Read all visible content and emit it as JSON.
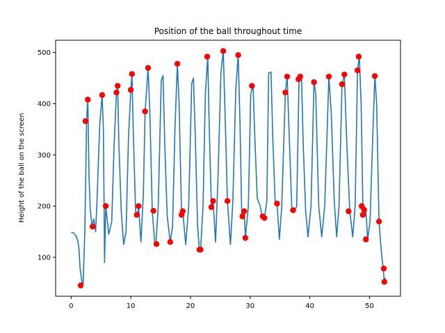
{
  "chart_data": {
    "type": "line",
    "title": "Position of the ball throughout time",
    "xlabel": "",
    "ylabel": "Height of the ball on the screen",
    "xlim": [
      -2.6,
      55.2
    ],
    "ylim": [
      24,
      524
    ],
    "xticks": [
      0,
      10,
      20,
      30,
      40,
      50
    ],
    "yticks": [
      100,
      200,
      300,
      400,
      500
    ],
    "grid": false,
    "line_color": "#1f77b4",
    "marker_color": "#ff0000",
    "series": [
      {
        "values": [
          [
            0,
            148
          ],
          [
            0.4,
            148
          ],
          [
            0.8,
            142
          ],
          [
            1.1,
            133
          ],
          [
            1.3,
            118
          ],
          [
            1.5,
            78
          ],
          [
            1.8,
            52
          ],
          [
            2.0,
            45
          ],
          [
            2.3,
            150
          ],
          [
            2.6,
            370
          ],
          [
            2.8,
            408
          ],
          [
            3.0,
            255
          ],
          [
            3.2,
            195
          ],
          [
            3.5,
            160
          ],
          [
            3.8,
            175
          ],
          [
            4.1,
            150
          ],
          [
            4.3,
            200
          ],
          [
            4.8,
            360
          ],
          [
            5.2,
            417
          ],
          [
            5.4,
            350
          ],
          [
            5.6,
            90
          ],
          [
            5.8,
            200
          ],
          [
            6.3,
            145
          ],
          [
            6.8,
            170
          ],
          [
            7.2,
            320
          ],
          [
            7.6,
            422
          ],
          [
            7.8,
            435
          ],
          [
            8.0,
            320
          ],
          [
            8.4,
            190
          ],
          [
            8.8,
            125
          ],
          [
            9.2,
            150
          ],
          [
            9.6,
            330
          ],
          [
            10.0,
            427
          ],
          [
            10.2,
            458
          ],
          [
            10.4,
            350
          ],
          [
            10.8,
            190
          ],
          [
            11.1,
            183
          ],
          [
            11.3,
            200
          ],
          [
            11.7,
            130
          ],
          [
            12.1,
            220
          ],
          [
            12.4,
            385
          ],
          [
            12.9,
            470
          ],
          [
            13.2,
            380
          ],
          [
            13.6,
            190
          ],
          [
            14.0,
            130
          ],
          [
            14.2,
            126
          ],
          [
            14.6,
            200
          ],
          [
            15.1,
            445
          ],
          [
            15.4,
            455
          ],
          [
            15.7,
            320
          ],
          [
            16.1,
            180
          ],
          [
            16.6,
            130
          ],
          [
            17.0,
            160
          ],
          [
            17.4,
            350
          ],
          [
            17.8,
            478
          ],
          [
            18.1,
            400
          ],
          [
            18.5,
            183
          ],
          [
            18.7,
            190
          ],
          [
            19.2,
            125
          ],
          [
            19.7,
            200
          ],
          [
            20.2,
            440
          ],
          [
            20.5,
            450
          ],
          [
            20.8,
            340
          ],
          [
            21.2,
            160
          ],
          [
            21.5,
            115
          ],
          [
            21.7,
            115
          ],
          [
            22.1,
            200
          ],
          [
            22.5,
            420
          ],
          [
            22.9,
            492
          ],
          [
            23.1,
            380
          ],
          [
            23.5,
            198
          ],
          [
            23.8,
            210
          ],
          [
            24.2,
            130
          ],
          [
            24.6,
            250
          ],
          [
            25.1,
            460
          ],
          [
            25.5,
            503
          ],
          [
            25.8,
            380
          ],
          [
            26.2,
            210
          ],
          [
            26.7,
            125
          ],
          [
            27.1,
            210
          ],
          [
            27.6,
            430
          ],
          [
            28.0,
            495
          ],
          [
            28.3,
            360
          ],
          [
            28.6,
            180
          ],
          [
            29.0,
            190
          ],
          [
            29.2,
            138
          ],
          [
            29.7,
            200
          ],
          [
            30.1,
            420
          ],
          [
            30.5,
            435
          ],
          [
            30.8,
            330
          ],
          [
            31.2,
            215
          ],
          [
            31.7,
            200
          ],
          [
            32.0,
            180
          ],
          [
            32.4,
            177
          ],
          [
            32.8,
            210
          ],
          [
            33.1,
            460
          ],
          [
            33.5,
            462
          ],
          [
            33.8,
            330
          ],
          [
            34.2,
            205
          ],
          [
            34.5,
            205
          ],
          [
            34.9,
            135
          ],
          [
            35.3,
            200
          ],
          [
            35.9,
            422
          ],
          [
            36.2,
            453
          ],
          [
            36.6,
            320
          ],
          [
            37.0,
            192
          ],
          [
            37.4,
            190
          ],
          [
            37.8,
            200
          ],
          [
            38.2,
            448
          ],
          [
            38.6,
            453
          ],
          [
            38.9,
            320
          ],
          [
            39.3,
            190
          ],
          [
            39.7,
            140
          ],
          [
            40.2,
            200
          ],
          [
            40.7,
            442
          ],
          [
            41.0,
            420
          ],
          [
            41.5,
            200
          ],
          [
            42.0,
            140
          ],
          [
            42.5,
            200
          ],
          [
            43.2,
            453
          ],
          [
            43.6,
            380
          ],
          [
            44.1,
            210
          ],
          [
            44.5,
            140
          ],
          [
            44.9,
            200
          ],
          [
            45.4,
            438
          ],
          [
            45.8,
            457
          ],
          [
            46.2,
            320
          ],
          [
            46.7,
            190
          ],
          [
            47.2,
            140
          ],
          [
            47.6,
            200
          ],
          [
            48.0,
            465
          ],
          [
            48.3,
            492
          ],
          [
            48.6,
            400
          ],
          [
            48.9,
            200
          ],
          [
            49.2,
            183
          ],
          [
            49.4,
            193
          ],
          [
            49.7,
            135
          ],
          [
            50.1,
            170
          ],
          [
            50.5,
            320
          ],
          [
            50.9,
            454
          ],
          [
            51.2,
            400
          ],
          [
            51.6,
            170
          ],
          [
            52.0,
            110
          ],
          [
            52.3,
            78
          ],
          [
            52.5,
            52
          ],
          [
            52.7,
            60
          ]
        ],
        "markers": [
          [
            1.6,
            45
          ],
          [
            2.4,
            366
          ],
          [
            2.8,
            408
          ],
          [
            3.6,
            160
          ],
          [
            5.2,
            417
          ],
          [
            5.8,
            200
          ],
          [
            7.6,
            422
          ],
          [
            7.8,
            435
          ],
          [
            10.0,
            427
          ],
          [
            10.2,
            458
          ],
          [
            11.0,
            183
          ],
          [
            11.3,
            200
          ],
          [
            12.4,
            385
          ],
          [
            12.9,
            470
          ],
          [
            13.8,
            191
          ],
          [
            14.3,
            126
          ],
          [
            16.6,
            130
          ],
          [
            17.8,
            478
          ],
          [
            18.5,
            183
          ],
          [
            18.7,
            190
          ],
          [
            21.5,
            115
          ],
          [
            21.7,
            115
          ],
          [
            22.8,
            492
          ],
          [
            23.5,
            198
          ],
          [
            23.8,
            210
          ],
          [
            25.5,
            503
          ],
          [
            26.2,
            210
          ],
          [
            28.0,
            495
          ],
          [
            28.7,
            180
          ],
          [
            29.0,
            190
          ],
          [
            29.2,
            138
          ],
          [
            30.3,
            435
          ],
          [
            32.1,
            180
          ],
          [
            32.4,
            177
          ],
          [
            34.5,
            205
          ],
          [
            35.9,
            422
          ],
          [
            36.2,
            453
          ],
          [
            37.2,
            192
          ],
          [
            38.1,
            448
          ],
          [
            38.4,
            453
          ],
          [
            40.7,
            442
          ],
          [
            43.2,
            453
          ],
          [
            45.4,
            438
          ],
          [
            45.8,
            457
          ],
          [
            46.5,
            190
          ],
          [
            48.0,
            465
          ],
          [
            48.2,
            492
          ],
          [
            48.7,
            200
          ],
          [
            48.9,
            183
          ],
          [
            49.1,
            193
          ],
          [
            49.4,
            135
          ],
          [
            50.9,
            454
          ],
          [
            51.6,
            170
          ],
          [
            52.4,
            78
          ],
          [
            52.5,
            52
          ]
        ]
      }
    ]
  }
}
